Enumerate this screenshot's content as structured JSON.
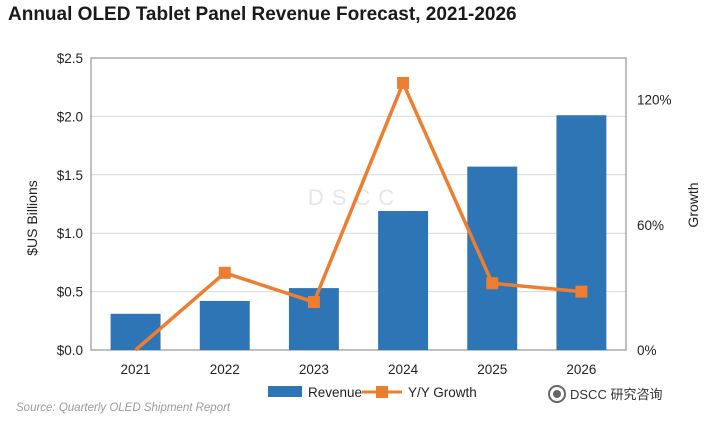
{
  "title": "Annual OLED Tablet Panel Revenue Forecast, 2021-2026",
  "source": "Source: Quarterly OLED Shipment Report",
  "watermark": "DSCC",
  "brand": "DSCC 研究咨询",
  "colors": {
    "revenue": "#2E75B6",
    "growth": "#ED7D31",
    "grid": "#d9d9d9",
    "axis": "#808080"
  },
  "chart_data": {
    "type": "bar+line",
    "categories": [
      "2021",
      "2022",
      "2023",
      "2024",
      "2025",
      "2026"
    ],
    "series": [
      {
        "name": "Revenue",
        "type": "bar",
        "axis": "left",
        "values": [
          0.31,
          0.42,
          0.53,
          1.19,
          1.57,
          2.01
        ]
      },
      {
        "name": "Y/Y Growth",
        "type": "line",
        "axis": "right",
        "values": [
          0,
          37,
          23,
          128,
          32,
          28
        ]
      }
    ],
    "ylabel": "$US Billions",
    "ylim": [
      0,
      2.5
    ],
    "yticks": [
      "$0.0",
      "$0.5",
      "$1.0",
      "$1.5",
      "$2.0",
      "$2.5"
    ],
    "y2label": "Growth",
    "y2lim": [
      0,
      140
    ],
    "y2ticks": [
      {
        "value": 0,
        "label": "0%"
      },
      {
        "value": 60,
        "label": "60%"
      },
      {
        "value": 120,
        "label": "120%"
      }
    ],
    "grid": true,
    "legend": "bottom"
  }
}
